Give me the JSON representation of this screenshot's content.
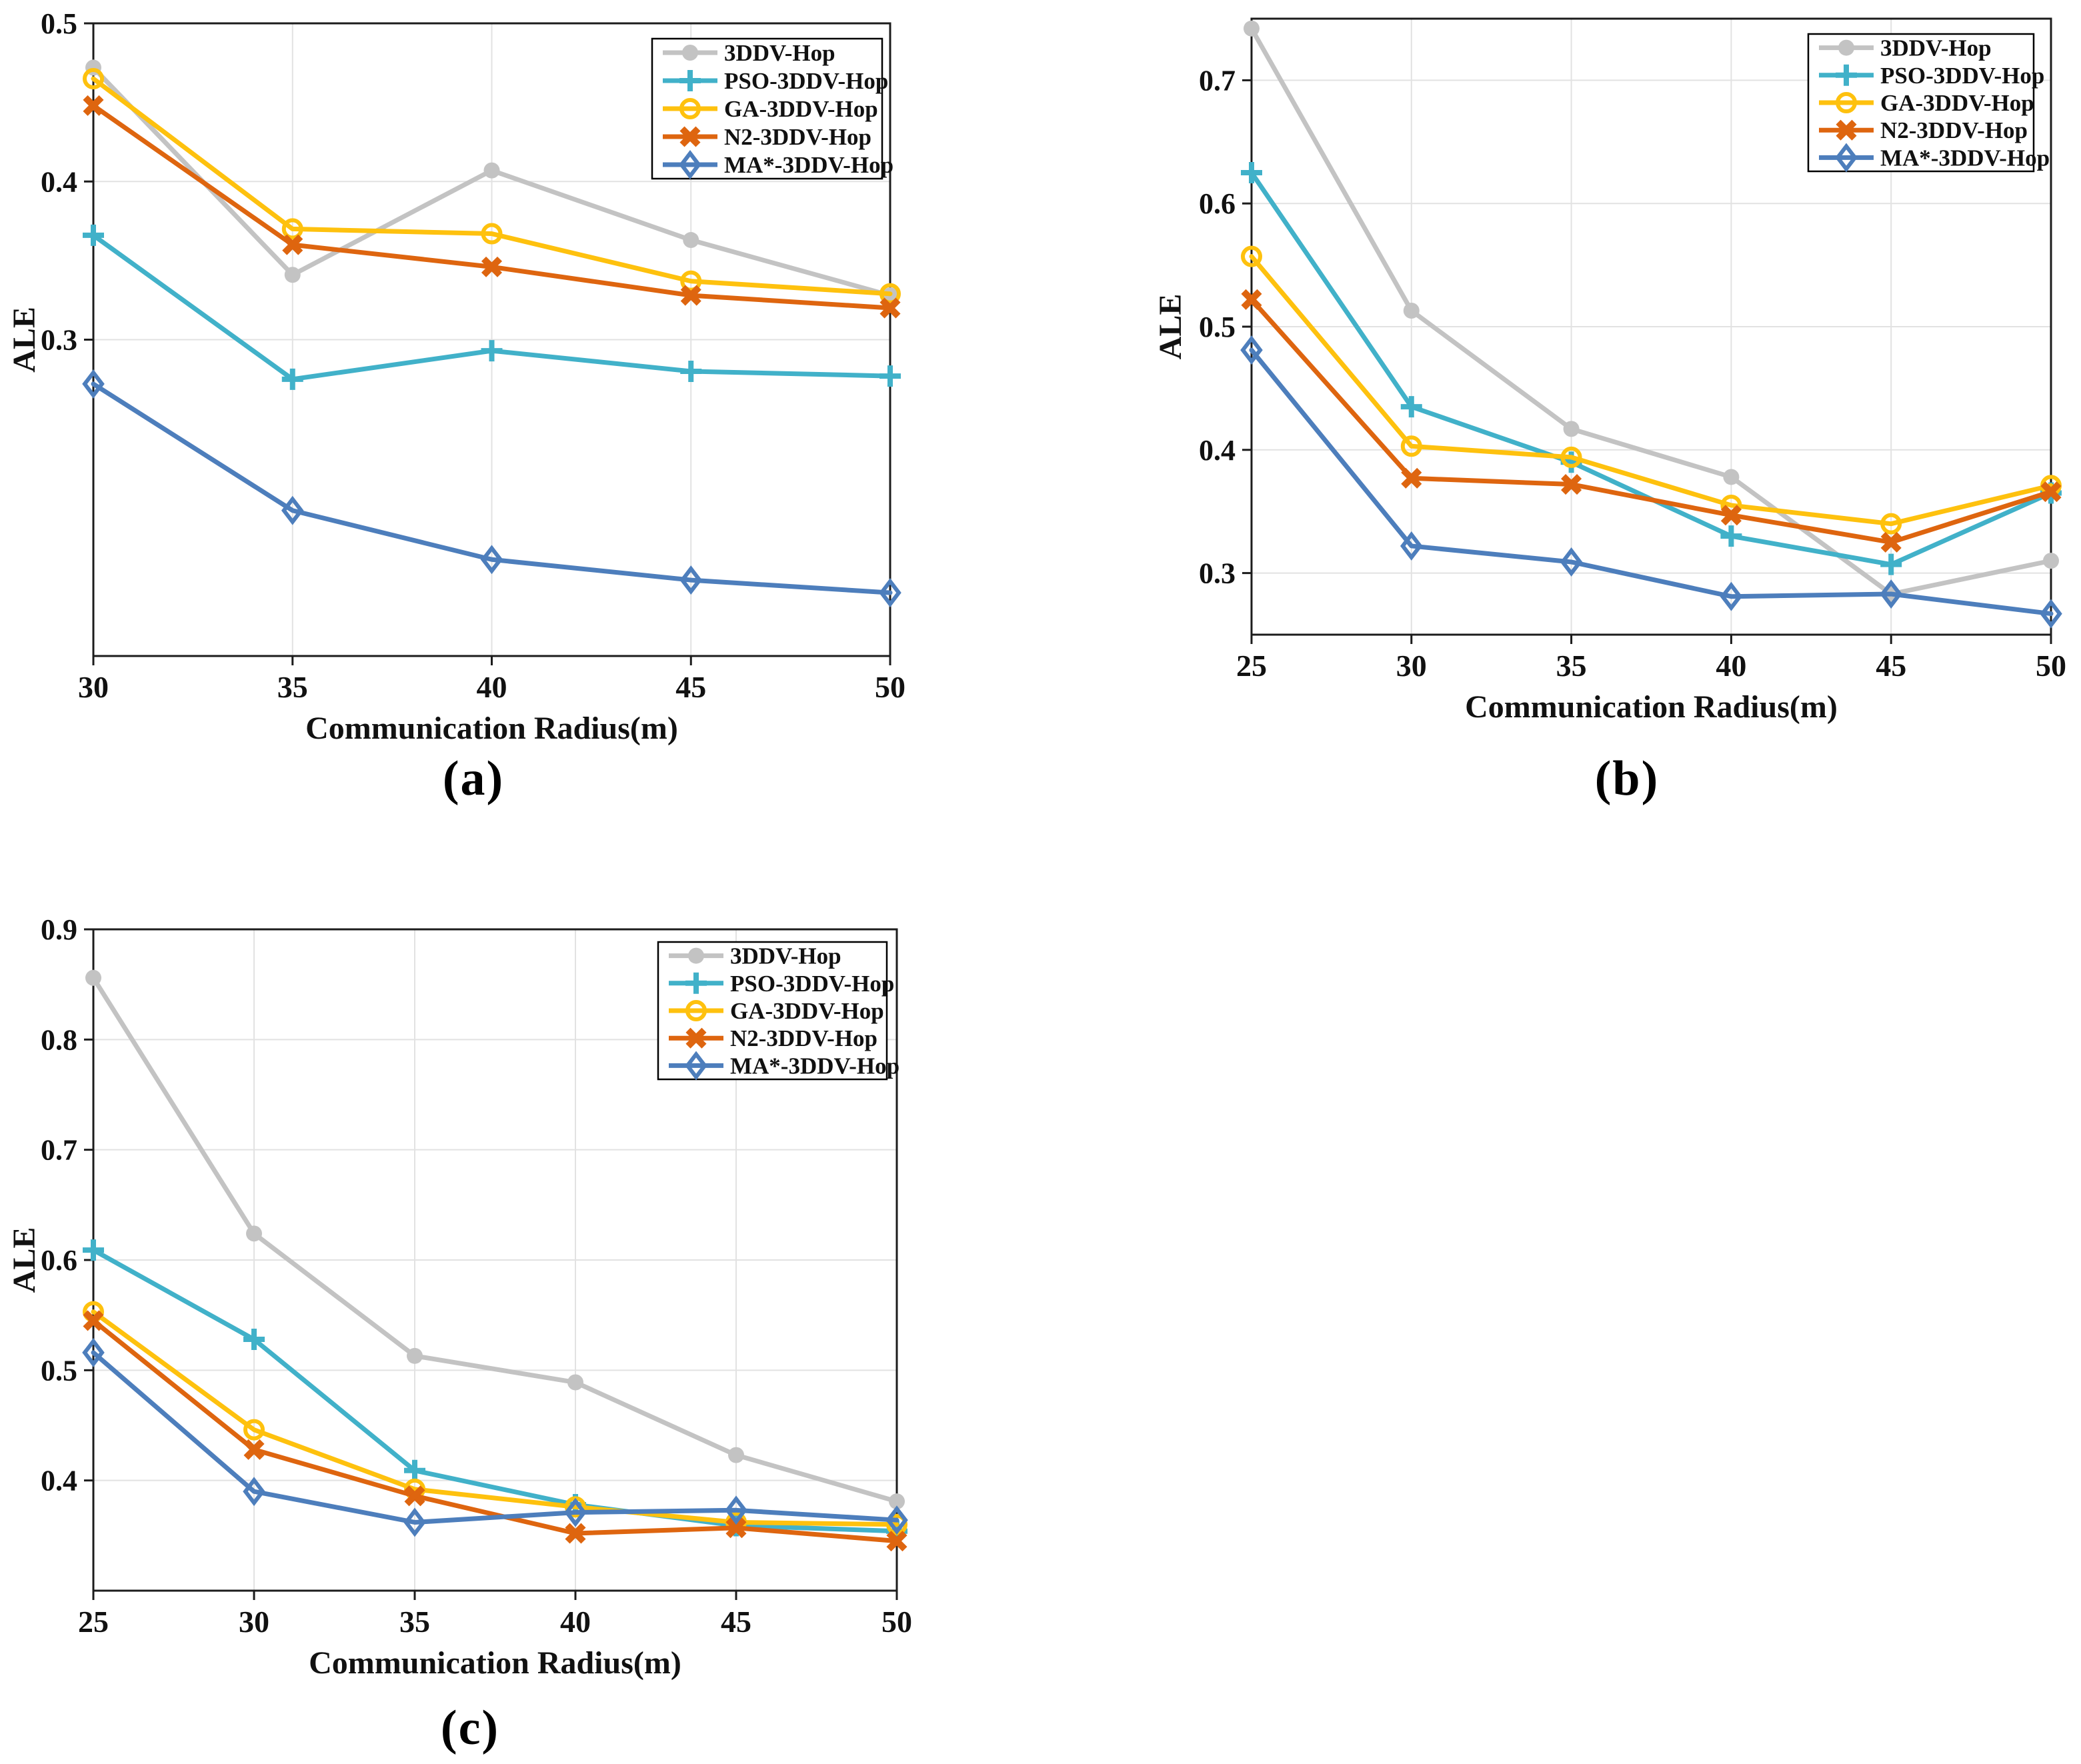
{
  "figure": {
    "captions": {
      "a": "(a)",
      "b": "(b)",
      "c": "(c)"
    }
  },
  "colors": {
    "background": "#ffffff",
    "axis": "#1c1c1c",
    "grid": "#e2e2e2",
    "text": "#111111",
    "series_gray": "#c3c3c3",
    "series_cyan": "#41b1c9",
    "series_yellow": "#fec10e",
    "series_orange": "#de650f",
    "series_blue": "#4d7ebc"
  },
  "legend": {
    "position": "top-right",
    "items": [
      {
        "label": "3DDV-Hop",
        "color": "#c3c3c3",
        "marker": "circle-filled"
      },
      {
        "label": "PSO-3DDV-Hop",
        "color": "#41b1c9",
        "marker": "plus"
      },
      {
        "label": "GA-3DDV-Hop",
        "color": "#fec10e",
        "marker": "circle-open"
      },
      {
        "label": "N2-3DDV-Hop",
        "color": "#de650f",
        "marker": "x"
      },
      {
        "label": "MA*-3DDV-Hop",
        "color": "#4d7ebc",
        "marker": "diamond-open"
      }
    ]
  },
  "chart_data": [
    {
      "id": "a",
      "type": "line",
      "title": "",
      "xlabel": "Communication Radius(m)",
      "ylabel": "ALE",
      "x": [
        30,
        35,
        40,
        45,
        50
      ],
      "xtick_labels": [
        "30",
        "35",
        "40",
        "45",
        "50"
      ],
      "ylim": [
        0.1,
        0.5
      ],
      "yticks": [
        0.3,
        0.4,
        0.5
      ],
      "ytick_labels": [
        "0.3",
        "0.4",
        "0.5"
      ],
      "grid": true,
      "legend_position": "top-right",
      "series": [
        {
          "name": "3DDV-Hop",
          "color": "#c3c3c3",
          "marker": "circle-filled",
          "values": [
            0.472,
            0.341,
            0.407,
            0.363,
            0.328
          ]
        },
        {
          "name": "PSO-3DDV-Hop",
          "color": "#41b1c9",
          "marker": "plus",
          "values": [
            0.366,
            0.275,
            0.293,
            0.28,
            0.277
          ]
        },
        {
          "name": "GA-3DDV-Hop",
          "color": "#fec10e",
          "marker": "circle-open",
          "values": [
            0.465,
            0.37,
            0.367,
            0.337,
            0.329
          ]
        },
        {
          "name": "N2-3DDV-Hop",
          "color": "#de650f",
          "marker": "x",
          "values": [
            0.448,
            0.36,
            0.346,
            0.328,
            0.32
          ]
        },
        {
          "name": "MA*-3DDV-Hop",
          "color": "#4d7ebc",
          "marker": "diamond-open",
          "values": [
            0.272,
            0.192,
            0.161,
            0.148,
            0.14
          ]
        }
      ]
    },
    {
      "id": "b",
      "type": "line",
      "title": "",
      "xlabel": "Communication Radius(m)",
      "ylabel": "ALE",
      "x": [
        25,
        30,
        35,
        40,
        45,
        50
      ],
      "xtick_labels": [
        "25",
        "30",
        "35",
        "40",
        "45",
        "50"
      ],
      "ylim": [
        0.25,
        0.75
      ],
      "yticks": [
        0.3,
        0.4,
        0.5,
        0.6,
        0.7
      ],
      "ytick_labels": [
        "0.3",
        "0.4",
        "0.5",
        "0.6",
        "0.7"
      ],
      "grid": true,
      "legend_position": "top-right",
      "series": [
        {
          "name": "3DDV-Hop",
          "color": "#c3c3c3",
          "marker": "circle-filled",
          "values": [
            0.742,
            0.513,
            0.417,
            0.378,
            0.283,
            0.31
          ]
        },
        {
          "name": "PSO-3DDV-Hop",
          "color": "#41b1c9",
          "marker": "plus",
          "values": [
            0.625,
            0.435,
            0.39,
            0.33,
            0.307,
            0.365
          ]
        },
        {
          "name": "GA-3DDV-Hop",
          "color": "#fec10e",
          "marker": "circle-open",
          "values": [
            0.557,
            0.403,
            0.394,
            0.355,
            0.34,
            0.371
          ]
        },
        {
          "name": "N2-3DDV-Hop",
          "color": "#de650f",
          "marker": "x",
          "values": [
            0.522,
            0.377,
            0.372,
            0.347,
            0.325,
            0.366
          ]
        },
        {
          "name": "MA*-3DDV-Hop",
          "color": "#4d7ebc",
          "marker": "diamond-open",
          "values": [
            0.481,
            0.322,
            0.309,
            0.281,
            0.283,
            0.267
          ]
        }
      ]
    },
    {
      "id": "c",
      "type": "line",
      "title": "",
      "xlabel": "Communication Radius(m)",
      "ylabel": "ALE",
      "x": [
        25,
        30,
        35,
        40,
        45,
        50
      ],
      "xtick_labels": [
        "25",
        "30",
        "35",
        "40",
        "45",
        "50"
      ],
      "ylim": [
        0.3,
        0.9
      ],
      "yticks": [
        0.4,
        0.5,
        0.6,
        0.7,
        0.8,
        0.9
      ],
      "ytick_labels": [
        "0.4",
        "0.5",
        "0.6",
        "0.7",
        "0.8",
        "0.9"
      ],
      "grid": true,
      "legend_position": "top-right",
      "series": [
        {
          "name": "3DDV-Hop",
          "color": "#c3c3c3",
          "marker": "circle-filled",
          "values": [
            0.856,
            0.624,
            0.513,
            0.489,
            0.423,
            0.381
          ]
        },
        {
          "name": "PSO-3DDV-Hop",
          "color": "#41b1c9",
          "marker": "plus",
          "values": [
            0.609,
            0.528,
            0.409,
            0.378,
            0.359,
            0.354
          ]
        },
        {
          "name": "GA-3DDV-Hop",
          "color": "#fec10e",
          "marker": "circle-open",
          "values": [
            0.553,
            0.446,
            0.392,
            0.376,
            0.362,
            0.36
          ]
        },
        {
          "name": "N2-3DDV-Hop",
          "color": "#de650f",
          "marker": "x",
          "values": [
            0.545,
            0.428,
            0.386,
            0.352,
            0.357,
            0.345
          ]
        },
        {
          "name": "MA*-3DDV-Hop",
          "color": "#4d7ebc",
          "marker": "diamond-open",
          "values": [
            0.516,
            0.39,
            0.362,
            0.371,
            0.373,
            0.364
          ]
        }
      ]
    }
  ]
}
